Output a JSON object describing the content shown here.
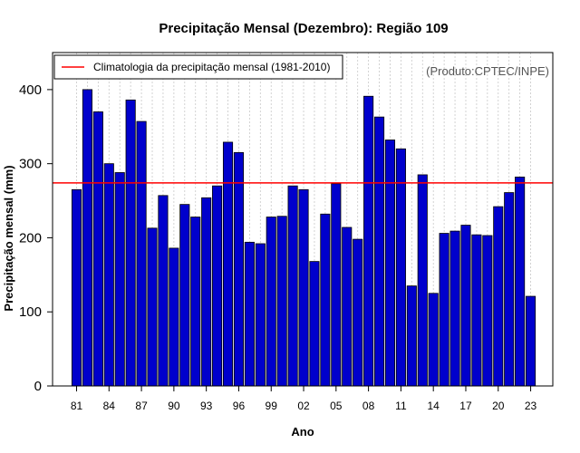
{
  "chart_data": {
    "type": "bar",
    "title": "Precipitação Mensal (Dezembro): Região 109",
    "xlabel": "Ano",
    "ylabel": "Precipitação mensal (mm)",
    "credit": "(Produto:CPTEC/INPE)",
    "ylim": [
      0,
      450
    ],
    "yticks": [
      0,
      100,
      200,
      300,
      400
    ],
    "grid": "vertical-dotted",
    "categories": [
      "1981",
      "1982",
      "1983",
      "1984",
      "1985",
      "1986",
      "1987",
      "1988",
      "1989",
      "1990",
      "1991",
      "1992",
      "1993",
      "1994",
      "1995",
      "1996",
      "1997",
      "1998",
      "1999",
      "2000",
      "2001",
      "2002",
      "2003",
      "2004",
      "2005",
      "2006",
      "2007",
      "2008",
      "2009",
      "2010",
      "2011",
      "2012",
      "2013",
      "2014",
      "2015",
      "2016",
      "2017",
      "2018",
      "2019",
      "2020",
      "2021",
      "2022",
      "2023"
    ],
    "values": [
      265,
      400,
      370,
      300,
      288,
      386,
      357,
      213,
      257,
      186,
      245,
      228,
      254,
      270,
      329,
      315,
      194,
      192,
      228,
      229,
      270,
      265,
      168,
      232,
      273,
      214,
      198,
      391,
      363,
      332,
      320,
      135,
      285,
      125,
      206,
      209,
      217,
      204,
      203,
      242,
      261,
      282,
      121
    ],
    "xtick_labels": [
      {
        "index": 0,
        "label": "81"
      },
      {
        "index": 3,
        "label": "84"
      },
      {
        "index": 6,
        "label": "87"
      },
      {
        "index": 9,
        "label": "90"
      },
      {
        "index": 12,
        "label": "93"
      },
      {
        "index": 15,
        "label": "96"
      },
      {
        "index": 18,
        "label": "99"
      },
      {
        "index": 21,
        "label": "02"
      },
      {
        "index": 24,
        "label": "05"
      },
      {
        "index": 27,
        "label": "08"
      },
      {
        "index": 30,
        "label": "11"
      },
      {
        "index": 33,
        "label": "14"
      },
      {
        "index": 36,
        "label": "17"
      },
      {
        "index": 39,
        "label": "20"
      },
      {
        "index": 42,
        "label": "23"
      }
    ],
    "climatology": {
      "label": "Climatologia da precipitação mensal (1981-2010)",
      "value": 274,
      "color": "#ff0000"
    },
    "legend_position": "top-left",
    "bar_color": "#0000cc"
  }
}
